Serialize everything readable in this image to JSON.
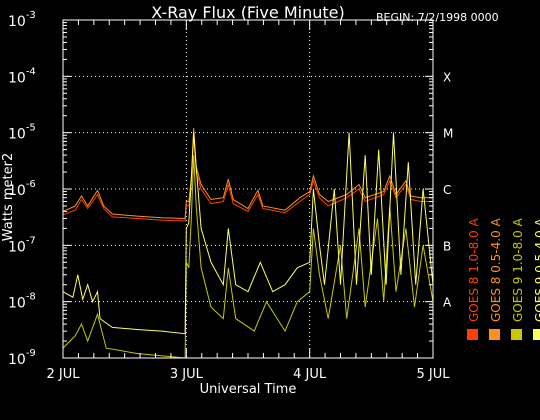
{
  "chart_data": {
    "type": "line",
    "title": "X-Ray Flux (Five Minute)",
    "subtitle": "BEGIN: 7/2/1998 0000",
    "xlabel": "Universal Time",
    "ylabel": "Watts meter2",
    "x_ticks": [
      {
        "day": 0,
        "label": "2 JUL"
      },
      {
        "day": 1,
        "label": "3 JUL"
      },
      {
        "day": 2,
        "label": "4 JUL"
      },
      {
        "day": 3,
        "label": "5 JUL"
      }
    ],
    "xlim_days": [
      0,
      3
    ],
    "y_scale": "log",
    "ylim": [
      1e-09,
      0.001
    ],
    "y_ticks": [
      {
        "value": 1e-09,
        "base": "10",
        "exp": "-9"
      },
      {
        "value": 1e-08,
        "base": "10",
        "exp": "-8"
      },
      {
        "value": 1e-07,
        "base": "10",
        "exp": "-7"
      },
      {
        "value": 1e-06,
        "base": "10",
        "exp": "-6"
      },
      {
        "value": 1e-05,
        "base": "10",
        "exp": "-5"
      },
      {
        "value": 0.0001,
        "base": "10",
        "exp": "-4"
      },
      {
        "value": 0.001,
        "base": "10",
        "exp": "-3"
      }
    ],
    "flare_classes": [
      {
        "label": "A",
        "value": 1e-08
      },
      {
        "label": "B",
        "value": 1e-07
      },
      {
        "label": "C",
        "value": 1e-06
      },
      {
        "label": "M",
        "value": 1e-05
      },
      {
        "label": "X",
        "value": 0.0001
      }
    ],
    "grid": "dotted",
    "legend_position": "right",
    "legend": [
      {
        "label": "GOES 8 1.0-8.0 A",
        "color": "#ff4000"
      },
      {
        "label": "GOES 8 0.5-4.0 A",
        "color": "#ff9020"
      },
      {
        "label": "GOES 9 1.0-8.0 A",
        "color": "#c8c800"
      },
      {
        "label": "GOES 9 0.5-4.0 A",
        "color": "#ffff60"
      }
    ],
    "series": [
      {
        "color": "#ff4000",
        "points": [
          [
            0.0,
            3.5e-07
          ],
          [
            0.1,
            4.2e-07
          ],
          [
            0.15,
            6.5e-07
          ],
          [
            0.2,
            4.5e-07
          ],
          [
            0.28,
            8e-07
          ],
          [
            0.33,
            4.5e-07
          ],
          [
            0.4,
            3.2e-07
          ],
          [
            0.6,
            3e-07
          ],
          [
            0.8,
            2.8e-07
          ],
          [
            0.99,
            2.7e-07
          ],
          [
            1.0,
            5e-07
          ],
          [
            1.02,
            5e-07
          ],
          [
            1.04,
            1.2e-06
          ],
          [
            1.06,
            9e-06
          ],
          [
            1.08,
            2e-06
          ],
          [
            1.12,
            1e-06
          ],
          [
            1.2,
            5.5e-07
          ],
          [
            1.3,
            6e-07
          ],
          [
            1.34,
            1.2e-06
          ],
          [
            1.38,
            5.5e-07
          ],
          [
            1.5,
            4e-07
          ],
          [
            1.58,
            8e-07
          ],
          [
            1.62,
            4.5e-07
          ],
          [
            1.8,
            3.8e-07
          ],
          [
            1.92,
            6e-07
          ],
          [
            2.0,
            8e-07
          ],
          [
            2.03,
            1.4e-06
          ],
          [
            2.08,
            7e-07
          ],
          [
            2.15,
            5e-07
          ],
          [
            2.3,
            7e-07
          ],
          [
            2.4,
            1e-06
          ],
          [
            2.45,
            6e-07
          ],
          [
            2.6,
            8e-07
          ],
          [
            2.65,
            1.4e-06
          ],
          [
            2.7,
            7e-07
          ],
          [
            2.78,
            1.2e-06
          ],
          [
            2.82,
            6.5e-07
          ],
          [
            2.9,
            6e-07
          ],
          [
            3.0,
            6e-07
          ]
        ]
      },
      {
        "color": "#ff9020",
        "points": [
          [
            0.0,
            4e-07
          ],
          [
            0.1,
            5e-07
          ],
          [
            0.15,
            7.5e-07
          ],
          [
            0.2,
            5e-07
          ],
          [
            0.28,
            9.5e-07
          ],
          [
            0.33,
            5e-07
          ],
          [
            0.4,
            3.6e-07
          ],
          [
            0.6,
            3.3e-07
          ],
          [
            0.8,
            3.1e-07
          ],
          [
            0.99,
            3e-07
          ],
          [
            1.0,
            6e-07
          ],
          [
            1.02,
            6e-07
          ],
          [
            1.04,
            1.5e-06
          ],
          [
            1.06,
            1.2e-05
          ],
          [
            1.08,
            2.5e-06
          ],
          [
            1.12,
            1.2e-06
          ],
          [
            1.2,
            6.5e-07
          ],
          [
            1.3,
            7e-07
          ],
          [
            1.34,
            1.5e-06
          ],
          [
            1.38,
            6.5e-07
          ],
          [
            1.5,
            4.5e-07
          ],
          [
            1.58,
            9.5e-07
          ],
          [
            1.62,
            5e-07
          ],
          [
            1.8,
            4.2e-07
          ],
          [
            1.92,
            7e-07
          ],
          [
            2.0,
            9e-07
          ],
          [
            2.03,
            1.7e-06
          ],
          [
            2.08,
            8e-07
          ],
          [
            2.15,
            6e-07
          ],
          [
            2.3,
            8e-07
          ],
          [
            2.4,
            1.2e-06
          ],
          [
            2.45,
            7e-07
          ],
          [
            2.6,
            9e-07
          ],
          [
            2.65,
            1.7e-06
          ],
          [
            2.7,
            8e-07
          ],
          [
            2.78,
            1.4e-06
          ],
          [
            2.82,
            7.5e-07
          ],
          [
            2.9,
            7e-07
          ],
          [
            3.0,
            7e-07
          ]
        ]
      },
      {
        "color": "#c8c800",
        "points": [
          [
            0.0,
            1.5e-09
          ],
          [
            0.1,
            2.5e-09
          ],
          [
            0.15,
            4e-09
          ],
          [
            0.2,
            2e-09
          ],
          [
            0.28,
            6e-09
          ],
          [
            0.35,
            1.5e-09
          ],
          [
            0.6,
            1.2e-09
          ],
          [
            0.99,
            1e-09
          ],
          [
            1.0,
            5e-08
          ],
          [
            1.02,
            4e-08
          ],
          [
            1.04,
            3e-07
          ],
          [
            1.06,
            4e-06
          ],
          [
            1.08,
            5e-07
          ],
          [
            1.12,
            4e-08
          ],
          [
            1.2,
            8e-09
          ],
          [
            1.3,
            5e-09
          ],
          [
            1.34,
            4e-08
          ],
          [
            1.4,
            5e-09
          ],
          [
            1.55,
            3e-09
          ],
          [
            1.65,
            1e-08
          ],
          [
            1.8,
            3e-09
          ],
          [
            1.9,
            1e-08
          ],
          [
            2.0,
            1.5e-08
          ],
          [
            2.03,
            2e-07
          ],
          [
            2.08,
            3e-08
          ],
          [
            2.15,
            5e-09
          ],
          [
            2.25,
            1e-07
          ],
          [
            2.3,
            5e-09
          ],
          [
            2.4,
            2e-07
          ],
          [
            2.45,
            8e-09
          ],
          [
            2.55,
            3e-07
          ],
          [
            2.6,
            1e-08
          ],
          [
            2.65,
            5e-07
          ],
          [
            2.7,
            1.5e-08
          ],
          [
            2.78,
            2e-07
          ],
          [
            2.85,
            8e-09
          ],
          [
            2.92,
            1e-07
          ],
          [
            3.0,
            1e-08
          ]
        ]
      },
      {
        "color": "#ffff60",
        "points": [
          [
            0.0,
            1.5e-08
          ],
          [
            0.08,
            1.2e-08
          ],
          [
            0.12,
            3e-08
          ],
          [
            0.16,
            1.1e-08
          ],
          [
            0.2,
            2e-08
          ],
          [
            0.24,
            1e-08
          ],
          [
            0.28,
            1.5e-08
          ],
          [
            0.3,
            5e-09
          ],
          [
            0.4,
            3.5e-09
          ],
          [
            0.6,
            3.2e-09
          ],
          [
            0.8,
            3e-09
          ],
          [
            0.99,
            2.7e-09
          ],
          [
            1.0,
            2e-07
          ],
          [
            1.02,
            2.5e-07
          ],
          [
            1.04,
            1.5e-06
          ],
          [
            1.06,
            1e-05
          ],
          [
            1.08,
            2.5e-06
          ],
          [
            1.12,
            2e-07
          ],
          [
            1.2,
            5e-08
          ],
          [
            1.3,
            2e-08
          ],
          [
            1.34,
            2e-07
          ],
          [
            1.4,
            2e-08
          ],
          [
            1.5,
            1.5e-08
          ],
          [
            1.6,
            5e-08
          ],
          [
            1.7,
            1.5e-08
          ],
          [
            1.8,
            2e-08
          ],
          [
            1.9,
            4e-08
          ],
          [
            2.0,
            5e-08
          ],
          [
            2.03,
            1e-06
          ],
          [
            2.08,
            1e-07
          ],
          [
            2.12,
            2e-08
          ],
          [
            2.2,
            1e-06
          ],
          [
            2.25,
            2e-08
          ],
          [
            2.32,
            1e-05
          ],
          [
            2.38,
            2e-08
          ],
          [
            2.45,
            4e-06
          ],
          [
            2.5,
            3e-08
          ],
          [
            2.56,
            5e-06
          ],
          [
            2.62,
            2e-08
          ],
          [
            2.68,
            1e-05
          ],
          [
            2.74,
            3e-08
          ],
          [
            2.8,
            3e-06
          ],
          [
            2.86,
            2e-08
          ],
          [
            2.92,
            1e-06
          ],
          [
            3.0,
            2e-08
          ]
        ]
      }
    ]
  }
}
